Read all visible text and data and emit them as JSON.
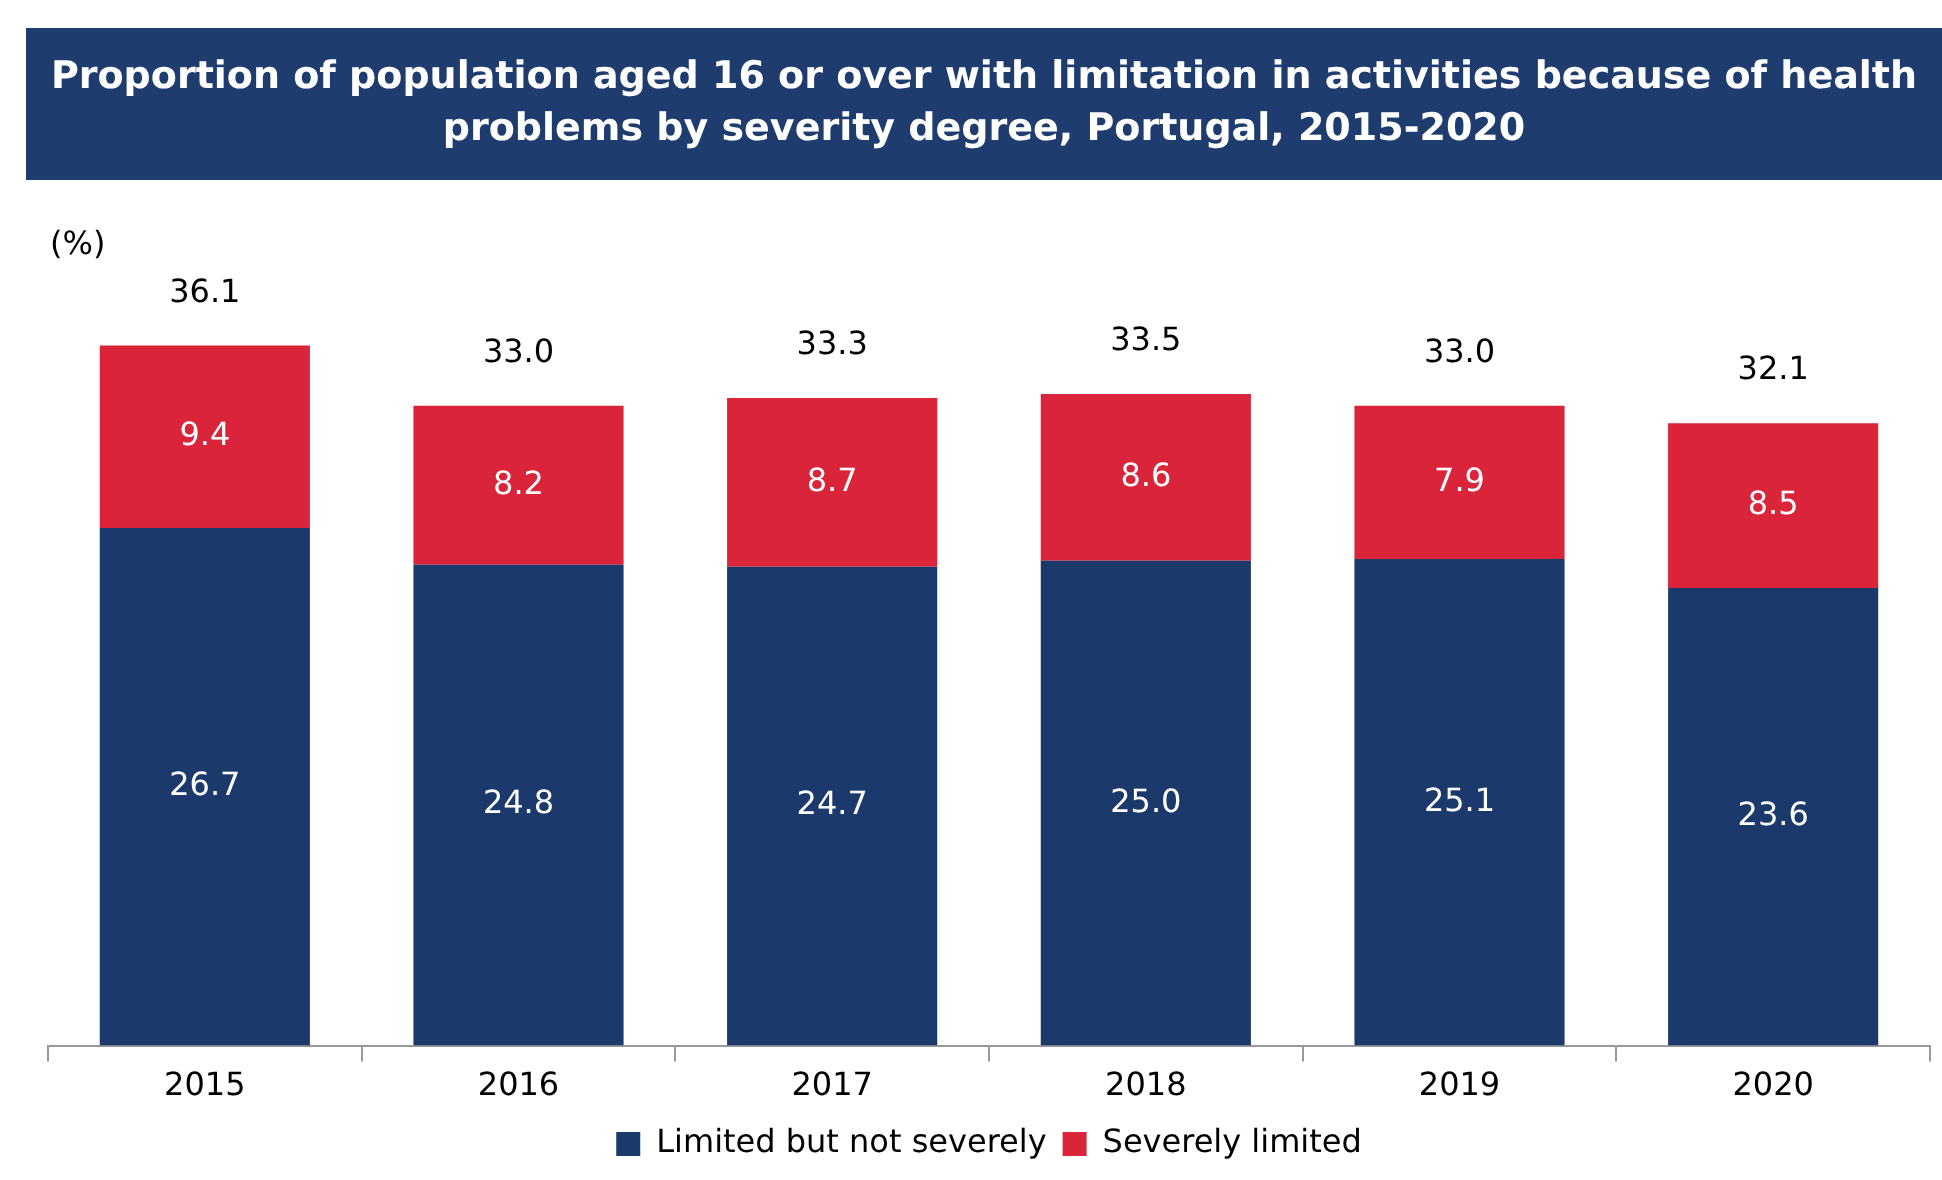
{
  "chart_data": {
    "type": "bar",
    "title": "Proportion of  population aged 16 or over with limitation in activities because of health problems by  severity degree, Portugal, 2015-2020",
    "ylabel": "(%)",
    "categories": [
      "2015",
      "2016",
      "2017",
      "2018",
      "2019",
      "2020"
    ],
    "series": [
      {
        "name": "Limited but not severely",
        "color": "#1b3a6b",
        "values": [
          26.7,
          24.8,
          24.7,
          25.0,
          25.1,
          23.6
        ],
        "value_labels": [
          "26.7",
          "24.8",
          "24.7",
          "25.0",
          "25.1",
          "23.6"
        ]
      },
      {
        "name": "Severely limited",
        "color": "#d9243a",
        "values": [
          9.4,
          8.2,
          8.7,
          8.6,
          7.9,
          8.5
        ],
        "value_labels": [
          "9.4",
          "8.2",
          "8.7",
          "8.6",
          "7.9",
          "8.5"
        ]
      }
    ],
    "stacked": true,
    "totals": [
      "36.1",
      "33.0",
      "33.3",
      "33.5",
      "33.0",
      "32.1"
    ],
    "legend": "bottom",
    "grid": false
  }
}
